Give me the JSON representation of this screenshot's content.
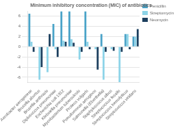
{
  "chart_data": {
    "type": "bar",
    "title": "Minimum inhibitory concentration (MIC) of antibiotics",
    "categories": [
      "Aerobacter aerogenese",
      "Brucella abortus",
      "Brucella anthracis",
      "Diplococcus pneumoniae",
      "Escherichia coli 1912",
      "Klebsiella pneumoniae",
      "Mycobacterium tuberculosis",
      "Proteus vulgaris",
      "Pseudomonas aeruginos",
      "Salmonella (Eberthella)",
      "Staphylococcus albus",
      "Streptococcus fecalis",
      "Streptococcus hemolyticus",
      "Streptococcus viridans"
    ],
    "series": [
      {
        "name": "Penicillin",
        "color": "#4aa3c8",
        "values": [
          6.5,
          0.0,
          0.0,
          4.5,
          7.0,
          7.0,
          0.0,
          7.0,
          0.0,
          2.5,
          0.0,
          0.0,
          2.5,
          2.0
        ]
      },
      {
        "name": "Streptomycin",
        "color": "#8dd4e8",
        "values": [
          1.0,
          -6.5,
          -5.0,
          -0.5,
          1.2,
          1.5,
          -2.5,
          1.0,
          -0.5,
          -6.5,
          -0.5,
          -7.0,
          2.5,
          2.0
        ]
      },
      {
        "name": "Neomycin",
        "color": "#1c3f5e",
        "values": [
          -1.0,
          -4.0,
          2.5,
          -2.0,
          1.0,
          0.8,
          -1.0,
          -0.5,
          -4.5,
          -1.0,
          -0.8,
          -1.0,
          -0.5,
          3.5
        ]
      }
    ],
    "ylim": [
      -7,
      7
    ],
    "yticks": [
      -6,
      -4,
      -2,
      0,
      2,
      4,
      6
    ],
    "grid": true,
    "legend": "upper right"
  }
}
